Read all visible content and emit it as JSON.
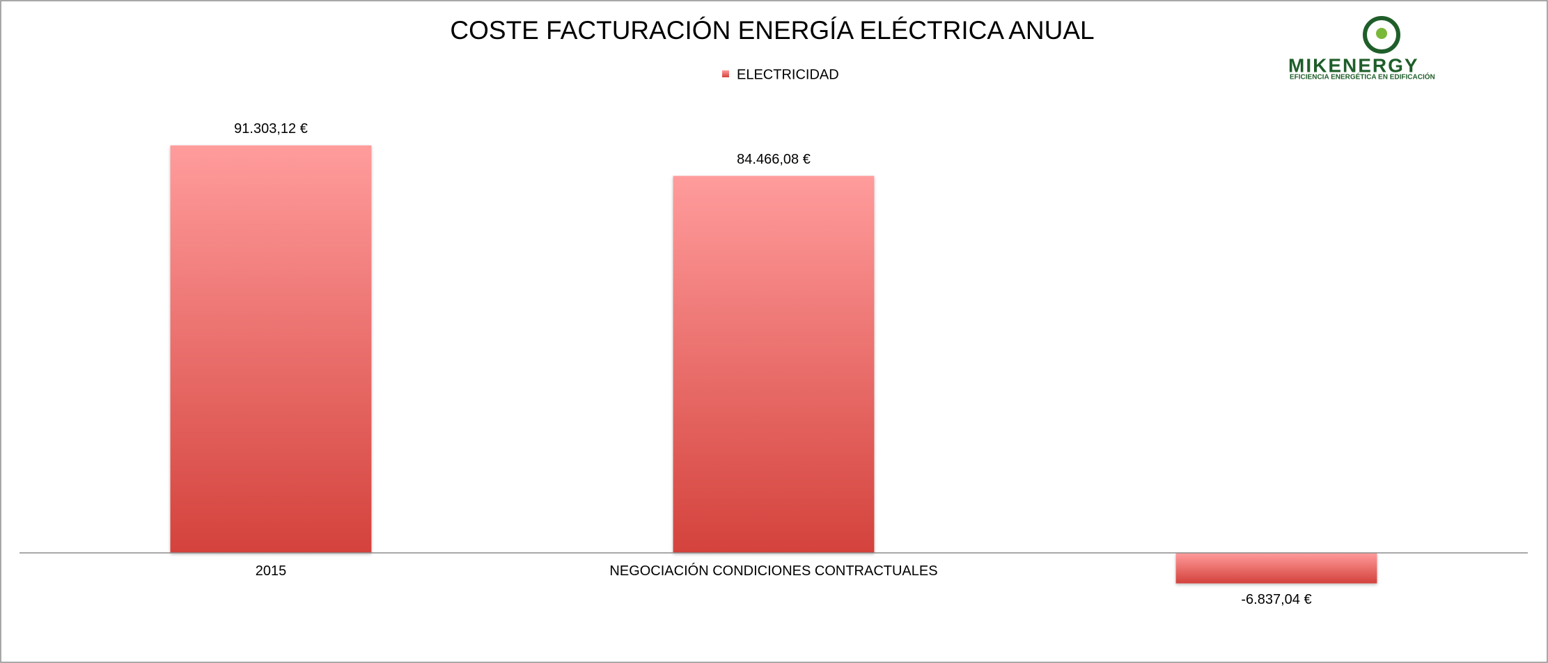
{
  "chart_data": {
    "type": "bar",
    "title": "COSTE FACTURACIÓN ENERGÍA  ELÉCTRICA ANUAL",
    "categories": [
      "2015",
      "NEGOCIACIÓN CONDICIONES CONTRACTUALES",
      null
    ],
    "series": [
      {
        "name": "ELECTRICIDAD",
        "color": "#d4423c",
        "values": [
          91303.12,
          84466.08,
          -6837.04
        ],
        "value_labels": [
          "91.303,12 €",
          "84.466,08 €",
          "-6.837,04 €"
        ]
      }
    ],
    "ylim": [
      -20000,
      100000
    ],
    "legend": "top",
    "logo": {
      "name": "MIKENERGY",
      "tagline": "EFICIENCIA ENERGÉTICA EN EDIFICACIÓN"
    }
  }
}
